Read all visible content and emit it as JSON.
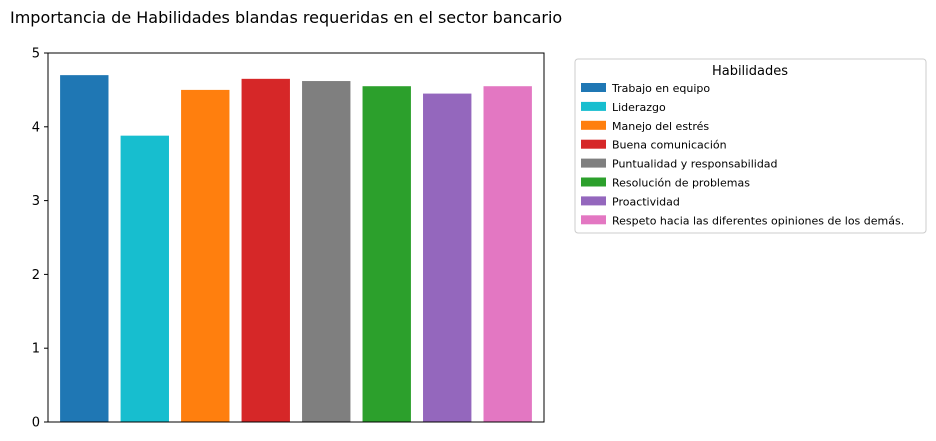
{
  "chart_data": {
    "type": "bar",
    "title": "Importancia de Habilidades blandas requeridas en el sector bancario",
    "xlabel": "",
    "ylabel": "",
    "ylim": [
      0,
      5
    ],
    "yticks": [
      "0",
      "1",
      "2",
      "3",
      "4",
      "5"
    ],
    "grid": false,
    "legend": {
      "title": "Habilidades",
      "placement": "outside-right"
    },
    "categories": [
      "Trabajo en equipo",
      "Liderazgo",
      "Manejo del estrés",
      "Buena comunicación",
      "Puntualidad y responsabilidad",
      "Resolución de problemas",
      "Proactividad",
      "Respeto hacia las diferentes opiniones de los demás."
    ],
    "values": [
      4.7,
      3.88,
      4.5,
      4.65,
      4.62,
      4.55,
      4.45,
      4.55
    ],
    "colors": [
      "#1f77b4",
      "#17becf",
      "#ff7f0e",
      "#d62728",
      "#7f7f7f",
      "#2ca02c",
      "#9467bd",
      "#e377c2"
    ]
  }
}
